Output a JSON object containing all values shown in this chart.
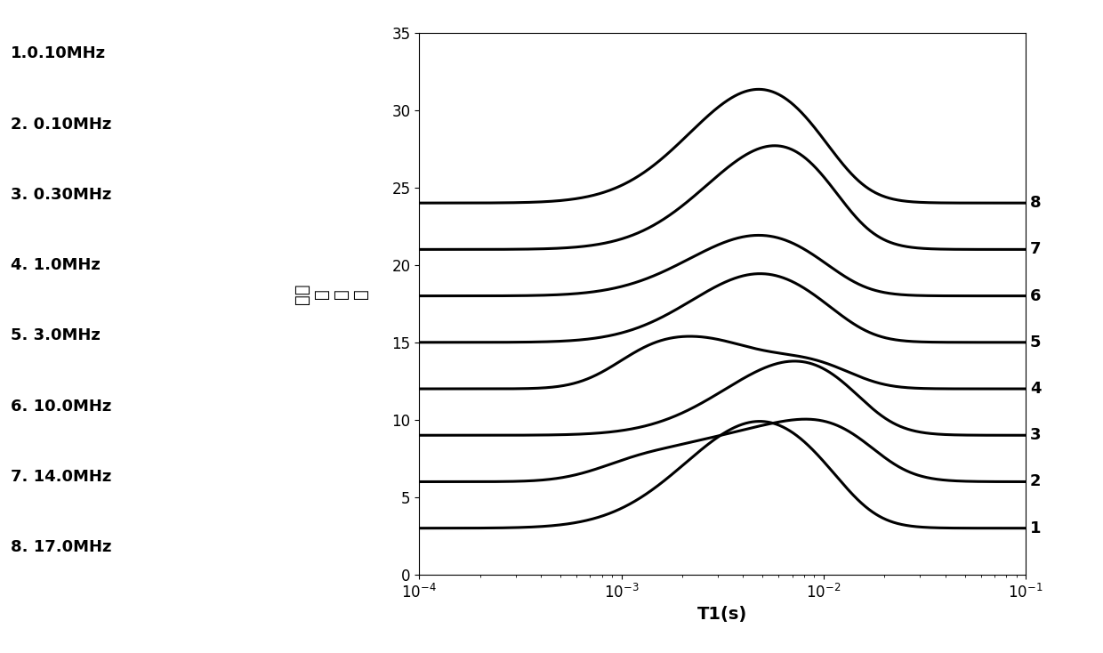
{
  "xlabel": "T1(s)",
  "ylabel": "频率\n的\n分\n布",
  "ylim": [
    0,
    35
  ],
  "yticks": [
    0,
    5,
    10,
    15,
    20,
    25,
    30,
    35
  ],
  "legend_labels": [
    "1.0.10MHz",
    "2. 0.10MHz",
    "3. 0.30MHz",
    "4. 1.0MHz",
    "5. 3.0MHz",
    "6. 10.0MHz",
    "7. 14.0MHz",
    "8. 17.0MHz"
  ],
  "curve_labels": [
    "1",
    "2",
    "3",
    "4",
    "5",
    "6",
    "7",
    "8"
  ],
  "background_color": "#ffffff",
  "line_color": "#000000",
  "line_width": 2.2,
  "figwidth": 12.4,
  "figheight": 7.34
}
